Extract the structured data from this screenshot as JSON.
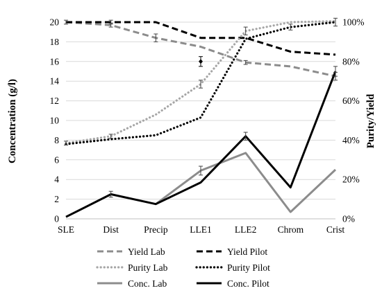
{
  "chart_data": {
    "type": "line",
    "title": "",
    "categories": [
      "SLE",
      "Dist",
      "Precip",
      "LLE1",
      "LLE2",
      "Chrom",
      "Crist"
    ],
    "y_left": {
      "label": "Concentration (g/l)",
      "min": 0,
      "max": 20,
      "step": 2,
      "ticks": [
        "0",
        "2",
        "4",
        "6",
        "8",
        "10",
        "12",
        "14",
        "16",
        "18",
        "20"
      ]
    },
    "y_right": {
      "label": "Purity/Yield",
      "min": 0,
      "max": 100,
      "step": 20,
      "ticks": [
        "0%",
        "20%",
        "40%",
        "60%",
        "80%",
        "100%"
      ]
    },
    "grid": true,
    "legend_position": "bottom",
    "series": [
      {
        "name": "Yield Lab",
        "axis": "right",
        "color": "#8c8c8c",
        "style": "dashed",
        "values": [
          100,
          98.5,
          92,
          87.5,
          79.5,
          77.5,
          72.5
        ],
        "errors": [
          null,
          1,
          2,
          null,
          1,
          null,
          2
        ]
      },
      {
        "name": "Yield Pilot",
        "axis": "right",
        "color": "#000000",
        "style": "dashed",
        "values": [
          100,
          100,
          100,
          92,
          92,
          85,
          83.5
        ],
        "errors": [
          1,
          1,
          null,
          null,
          null,
          null,
          null
        ]
      },
      {
        "name": "Purity Lab",
        "axis": "right",
        "color": "#a6a6a6",
        "style": "dotted",
        "values": [
          38.5,
          42,
          53,
          68.5,
          95.5,
          100,
          100.5
        ],
        "errors": [
          1,
          1,
          null,
          2,
          2,
          null,
          null
        ]
      },
      {
        "name": "Purity Pilot",
        "axis": "right",
        "color": "#000000",
        "style": "dotted",
        "values": [
          38,
          40.5,
          42.5,
          51.5,
          91.5,
          97.5,
          100
        ],
        "errors": [
          null,
          null,
          null,
          null,
          null,
          1.5,
          2
        ]
      },
      {
        "name": "Conc. Lab",
        "axis": "left",
        "color": "#8c8c8c",
        "style": "solid",
        "values": [
          null,
          null,
          1.5,
          4.9,
          6.7,
          0.7,
          5.0
        ],
        "errors": [
          null,
          null,
          null,
          0.45,
          null,
          null,
          null
        ]
      },
      {
        "name": "Conc. Pilot",
        "axis": "left",
        "color": "#000000",
        "style": "solid",
        "values": [
          0.2,
          2.5,
          1.5,
          3.7,
          8.4,
          3.2,
          15.0
        ],
        "errors": [
          null,
          0.3,
          null,
          null,
          0.4,
          null,
          0.5
        ]
      }
    ],
    "annotations": [
      {
        "series": "Yield Pilot",
        "category": "LLE1",
        "value": 80,
        "axis": "right",
        "error": 2.5,
        "marker": "diamond"
      }
    ]
  }
}
